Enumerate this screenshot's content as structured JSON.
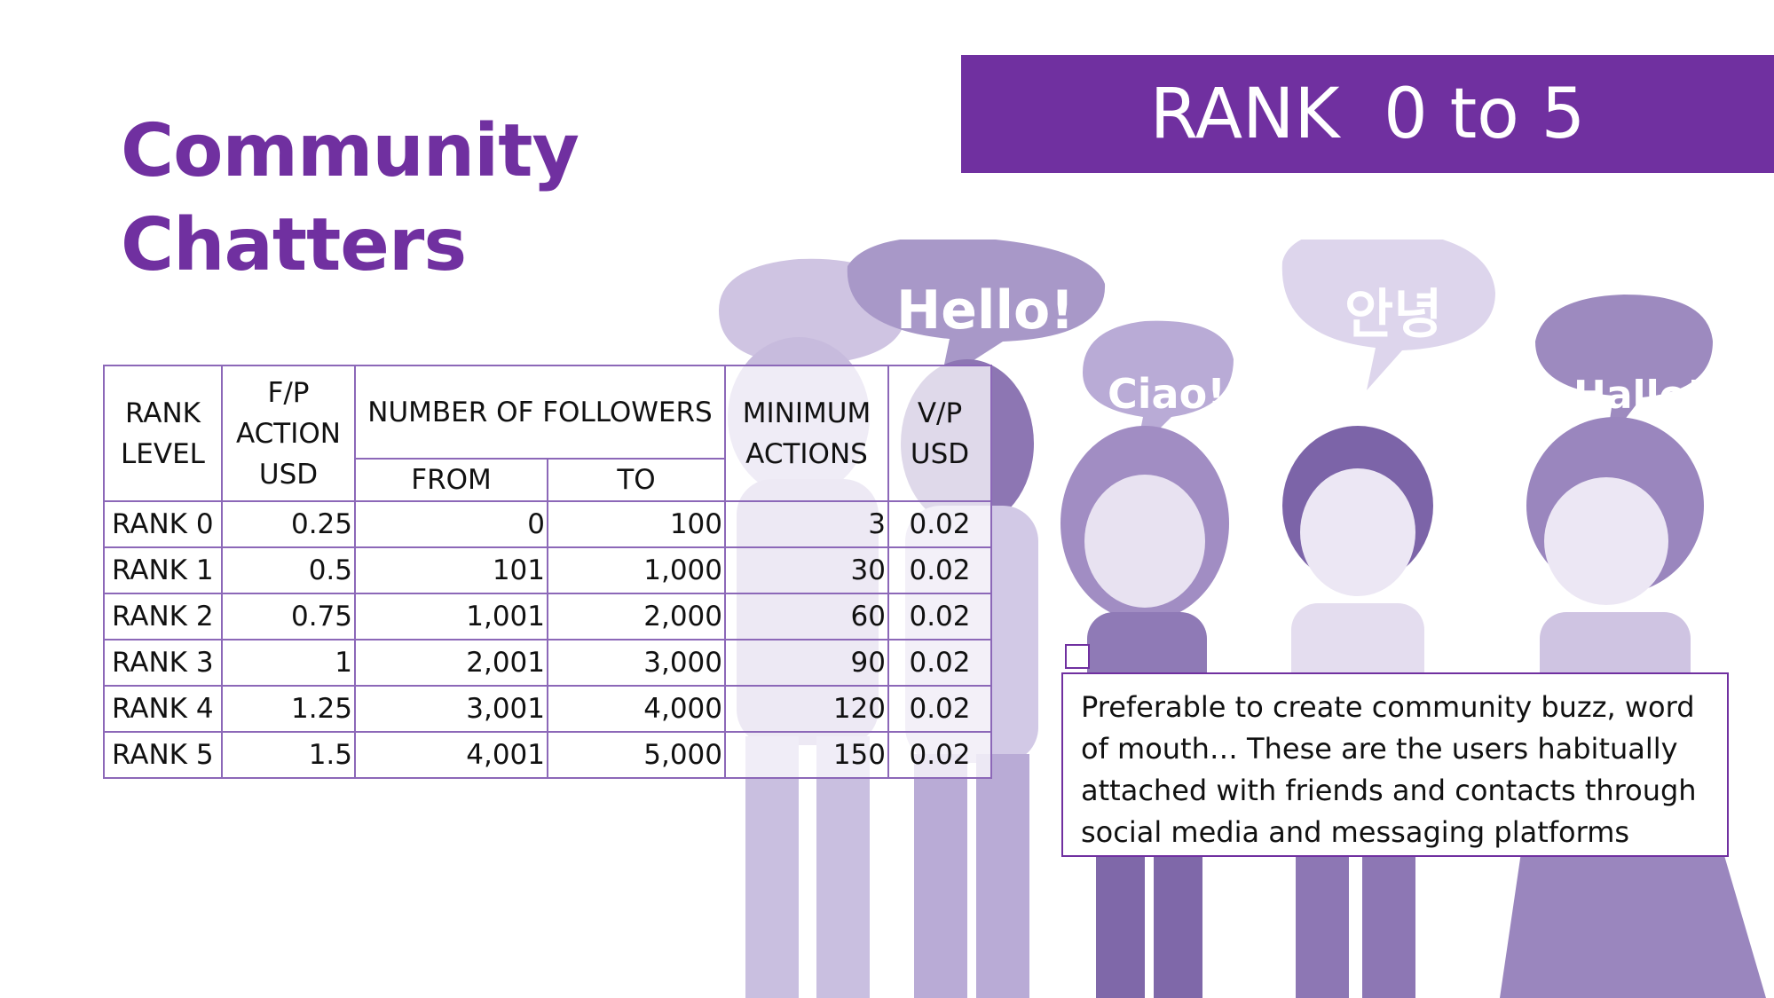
{
  "title": {
    "line1": "Community",
    "line2": "Chatters"
  },
  "banner": {
    "text": "RANK  0 to 5"
  },
  "bubbles": {
    "hello": "Hello!",
    "ciao": "Ciao!",
    "korean": "안녕",
    "hallo": "Hallo!"
  },
  "table": {
    "headers": {
      "rank_level": "RANK LEVEL",
      "fp_action": "F/P ACTION USD",
      "followers": "NUMBER OF FOLLOWERS",
      "from": "FROM",
      "to": "TO",
      "min_actions": "MINIMUM ACTIONS",
      "vp": "V/P USD"
    },
    "rows": [
      {
        "level": "RANK 0",
        "fp": "0.25",
        "from": "0",
        "to": "100",
        "min": "3",
        "vp": "0.02"
      },
      {
        "level": "RANK 1",
        "fp": "0.5",
        "from": "101",
        "to": "1,000",
        "min": "30",
        "vp": "0.02"
      },
      {
        "level": "RANK 2",
        "fp": "0.75",
        "from": "1,001",
        "to": "2,000",
        "min": "60",
        "vp": "0.02"
      },
      {
        "level": "RANK 3",
        "fp": "1",
        "from": "2,001",
        "to": "3,000",
        "min": "90",
        "vp": "0.02"
      },
      {
        "level": "RANK 4",
        "fp": "1.25",
        "from": "3,001",
        "to": "4,000",
        "min": "120",
        "vp": "0.02"
      },
      {
        "level": "RANK 5",
        "fp": "1.5",
        "from": "4,001",
        "to": "5,000",
        "min": "150",
        "vp": "0.02"
      }
    ]
  },
  "note": {
    "text": "Preferable to create community buzz, word of mouth… These are the users habitually attached with friends and contacts through social media and messaging platforms"
  },
  "colors": {
    "accent": "#7030a0",
    "illustration": "#b7a6d2",
    "border": "#8c68b8"
  }
}
